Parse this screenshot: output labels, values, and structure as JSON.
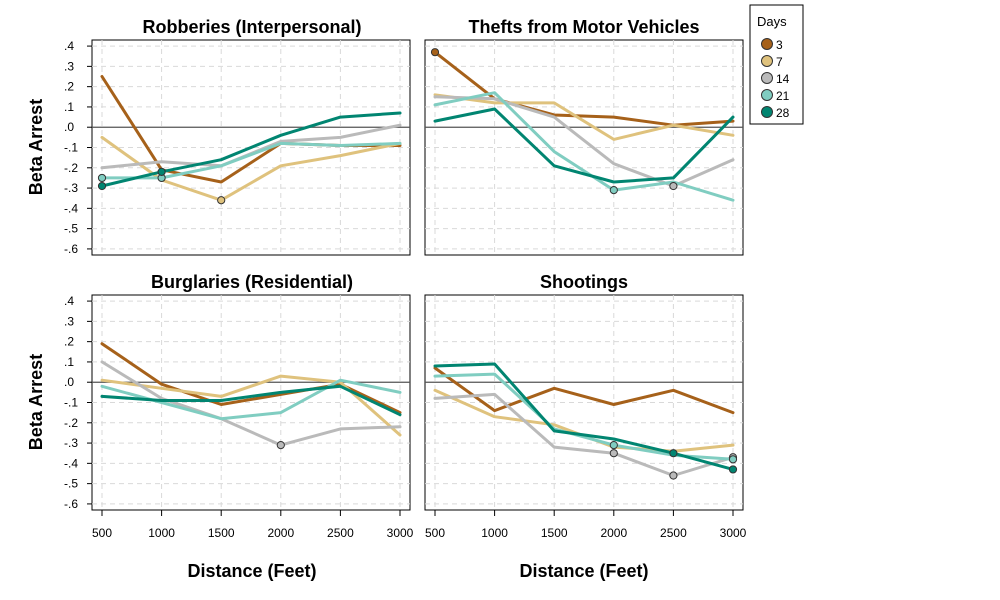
{
  "chart_data": {
    "type": "line",
    "y_label": "Beta Arrest",
    "x_label": "Distance (Feet)",
    "x_values": [
      500,
      1000,
      1500,
      2000,
      2500,
      3000
    ],
    "x_tick_labels": [
      "500",
      "1000",
      "1500",
      "2000",
      "2500",
      "3000"
    ],
    "y_ticks": [
      0.4,
      0.3,
      0.2,
      0.1,
      0.0,
      -0.1,
      -0.2,
      -0.3,
      -0.4,
      -0.5,
      -0.6
    ],
    "y_tick_labels": [
      ".4",
      ".3",
      ".2",
      ".1",
      ".0",
      "-.1",
      "-.2",
      "-.3",
      "-.4",
      "-.5",
      "-.6"
    ],
    "ylim": [
      -0.63,
      0.43
    ],
    "legend": {
      "title": "Days",
      "entries": [
        {
          "label": "3",
          "color": "#a6611a"
        },
        {
          "label": "7",
          "color": "#dfc27d"
        },
        {
          "label": "14",
          "color": "#bababa"
        },
        {
          "label": "21",
          "color": "#80cdc1"
        },
        {
          "label": "28",
          "color": "#018571"
        }
      ]
    },
    "panels": [
      {
        "title": "Robberies (Interpersonal)",
        "series": [
          {
            "name": "3",
            "values": [
              0.25,
              -0.21,
              -0.27,
              -0.08,
              -0.09,
              -0.09
            ],
            "significant": [
              false,
              false,
              false,
              false,
              false,
              false
            ]
          },
          {
            "name": "7",
            "values": [
              -0.05,
              -0.26,
              -0.36,
              -0.19,
              -0.14,
              -0.08
            ],
            "significant": [
              false,
              false,
              true,
              false,
              false,
              false
            ]
          },
          {
            "name": "14",
            "values": [
              -0.2,
              -0.17,
              -0.19,
              -0.07,
              -0.05,
              0.01
            ],
            "significant": [
              false,
              false,
              false,
              false,
              false,
              false
            ]
          },
          {
            "name": "21",
            "values": [
              -0.25,
              -0.25,
              -0.19,
              -0.08,
              -0.09,
              -0.08
            ],
            "significant": [
              true,
              true,
              false,
              false,
              false,
              false
            ]
          },
          {
            "name": "28",
            "values": [
              -0.29,
              -0.22,
              -0.16,
              -0.04,
              0.05,
              0.07
            ],
            "significant": [
              true,
              true,
              false,
              false,
              false,
              false
            ]
          }
        ]
      },
      {
        "title": "Thefts from Motor Vehicles",
        "series": [
          {
            "name": "3",
            "values": [
              0.37,
              0.14,
              0.06,
              0.05,
              0.01,
              0.03
            ],
            "significant": [
              true,
              false,
              false,
              false,
              false,
              false
            ]
          },
          {
            "name": "7",
            "values": [
              0.16,
              0.12,
              0.12,
              -0.06,
              0.01,
              -0.04
            ],
            "significant": [
              false,
              false,
              false,
              false,
              false,
              false
            ]
          },
          {
            "name": "14",
            "values": [
              0.15,
              0.14,
              0.05,
              -0.18,
              -0.29,
              -0.16
            ],
            "significant": [
              false,
              false,
              false,
              false,
              true,
              false
            ]
          },
          {
            "name": "21",
            "values": [
              0.11,
              0.17,
              -0.12,
              -0.31,
              -0.27,
              -0.36
            ],
            "significant": [
              false,
              false,
              false,
              true,
              false,
              false
            ]
          },
          {
            "name": "28",
            "values": [
              0.03,
              0.09,
              -0.19,
              -0.27,
              -0.25,
              0.05
            ],
            "significant": [
              false,
              false,
              false,
              false,
              false,
              false
            ]
          }
        ]
      },
      {
        "title": "Burglaries (Residential)",
        "series": [
          {
            "name": "3",
            "values": [
              0.19,
              -0.01,
              -0.11,
              -0.06,
              -0.01,
              -0.15
            ],
            "significant": [
              false,
              false,
              false,
              false,
              false,
              false
            ]
          },
          {
            "name": "7",
            "values": [
              0.01,
              -0.03,
              -0.07,
              0.03,
              0.0,
              -0.26
            ],
            "significant": [
              false,
              false,
              false,
              false,
              false,
              false
            ]
          },
          {
            "name": "14",
            "values": [
              0.1,
              -0.08,
              -0.18,
              -0.31,
              -0.23,
              -0.22
            ],
            "significant": [
              false,
              false,
              false,
              true,
              false,
              false
            ]
          },
          {
            "name": "21",
            "values": [
              -0.02,
              -0.1,
              -0.18,
              -0.15,
              0.01,
              -0.05
            ],
            "significant": [
              false,
              false,
              false,
              false,
              false,
              false
            ]
          },
          {
            "name": "28",
            "values": [
              -0.07,
              -0.09,
              -0.09,
              -0.05,
              -0.02,
              -0.16
            ],
            "significant": [
              false,
              false,
              false,
              false,
              false,
              false
            ]
          }
        ]
      },
      {
        "title": "Shootings",
        "series": [
          {
            "name": "3",
            "values": [
              0.07,
              -0.14,
              -0.03,
              -0.11,
              -0.04,
              -0.15
            ],
            "significant": [
              false,
              false,
              false,
              false,
              false,
              false
            ]
          },
          {
            "name": "7",
            "values": [
              -0.04,
              -0.17,
              -0.21,
              -0.32,
              -0.34,
              -0.31
            ],
            "significant": [
              false,
              false,
              false,
              false,
              false,
              false
            ]
          },
          {
            "name": "14",
            "values": [
              -0.08,
              -0.06,
              -0.32,
              -0.35,
              -0.46,
              -0.37
            ],
            "significant": [
              false,
              false,
              false,
              true,
              true,
              true
            ]
          },
          {
            "name": "21",
            "values": [
              0.03,
              0.04,
              -0.23,
              -0.31,
              -0.36,
              -0.38
            ],
            "significant": [
              false,
              false,
              false,
              true,
              false,
              true
            ]
          },
          {
            "name": "28",
            "values": [
              0.08,
              0.09,
              -0.24,
              -0.28,
              -0.35,
              -0.43
            ],
            "significant": [
              false,
              false,
              false,
              false,
              true,
              true
            ]
          }
        ]
      }
    ]
  }
}
